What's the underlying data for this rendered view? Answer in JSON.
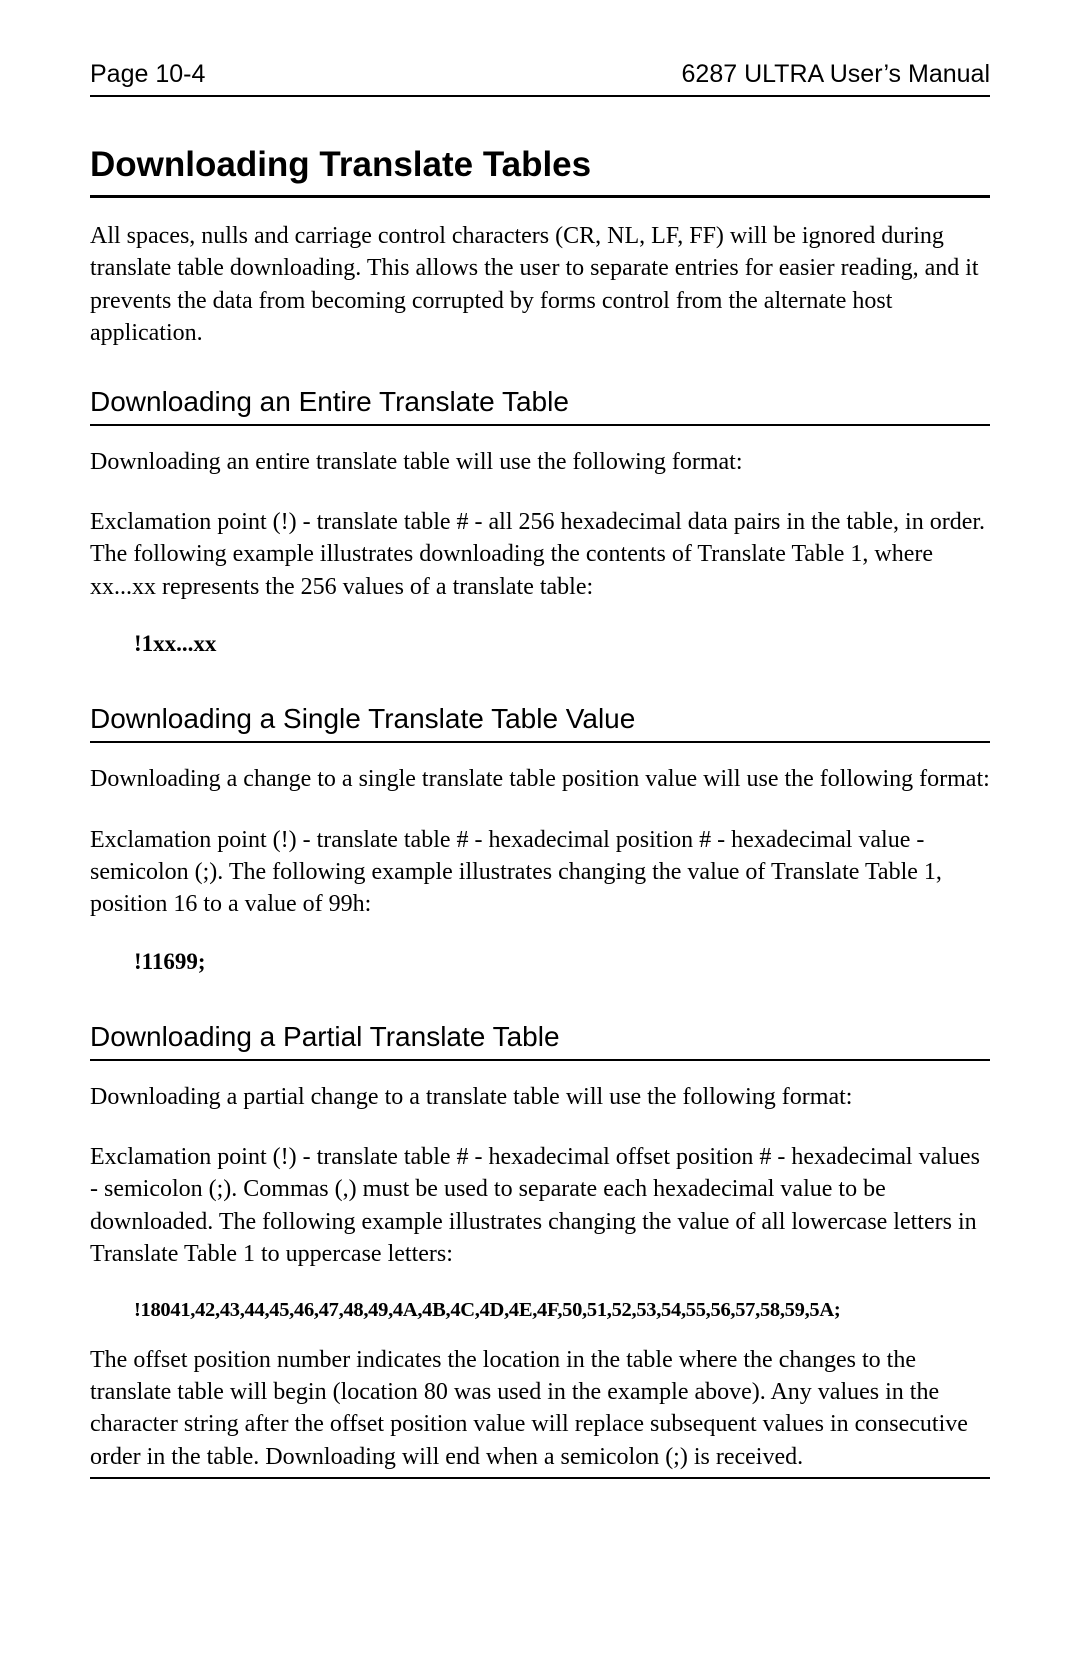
{
  "header": {
    "left": "Page 10-4",
    "right": "6287 ULTRA User’s Manual"
  },
  "sections": {
    "title": "Downloading Translate Tables",
    "intro": "All spaces, nulls and carriage control characters (CR, NL, LF, FF) will be ignored during translate table downloading. This allows the user to separate entries for easier reading, and it prevents the data from becoming corrupted by forms control from the alternate host application.",
    "s1": {
      "heading": "Downloading an Entire Translate Table",
      "p1": "Downloading an entire translate table will use the following format:",
      "p2": "Exclamation point (!) - translate table # - all 256 hexadecimal data pairs in the table, in order. The following example illustrates downloading the contents of Translate Table 1, where xx...xx represents the 256 values of a translate table:",
      "code": "!1xx...xx"
    },
    "s2": {
      "heading": "Downloading a Single Translate Table Value",
      "p1": "Downloading a change to a single translate table position value will use the following format:",
      "p2": "Exclamation point (!) - translate table # - hexadecimal position # - hexadecimal value - semicolon (;). The following example illustrates changing the value of Translate Table 1, position 16 to a value of 99h:",
      "code": "!11699;"
    },
    "s3": {
      "heading": "Downloading a Partial Translate Table",
      "p1": "Downloading a partial change to a translate table will use the following format:",
      "p2": "Exclamation point (!) - translate table # - hexadecimal offset position # - hexadecimal values - semicolon (;). Commas (,) must be used to separate each hexadecimal value to be downloaded. The following example illustrates changing the value of all lowercase letters in Translate Table 1 to uppercase letters:",
      "code": "!18041,42,43,44,45,46,47,48,49,4A,4B,4C,4D,4E,4F,50,51,52,53,54,55,56,57,58,59,5A;",
      "p3": "The offset position number indicates the location in the table where the changes to the translate table will begin (location 80 was used in the example above). Any values in the character string after the offset position value will replace subsequent values in consecutive order in the table. Downloading will end when a semicolon (;) is received."
    }
  }
}
